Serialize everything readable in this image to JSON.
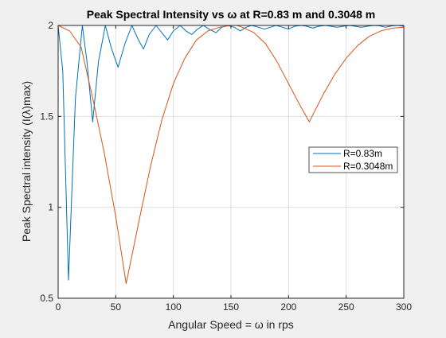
{
  "chart_data": {
    "type": "line",
    "title": "Peak Spectral Intensity vs ω at R=0.83 m and 0.3048 m",
    "xlabel": "Angular Speed = ω in rps",
    "ylabel": "Peak Spectral intensity (I(λ)max)",
    "xlim": [
      0,
      300
    ],
    "ylim": [
      0.5,
      2
    ],
    "xticks": [
      "0",
      "50",
      "100",
      "150",
      "200",
      "250",
      "300"
    ],
    "yticks": [
      "0.5",
      "1",
      "1.5",
      "2"
    ],
    "grid": true,
    "legend_position": "right",
    "series": [
      {
        "name": "R=0.83m",
        "color": "#0072bd",
        "x": [
          0,
          4,
          9,
          15,
          21,
          25,
          30,
          35,
          41,
          46,
          52,
          58,
          64,
          69,
          74,
          79,
          85,
          90,
          95,
          100,
          106,
          111,
          116,
          121,
          126,
          131,
          137,
          142,
          147,
          153,
          158,
          163,
          168,
          174,
          179,
          184,
          189,
          195,
          200,
          205,
          211,
          216,
          221,
          226,
          232,
          237,
          242,
          247,
          253,
          258,
          263,
          268,
          274,
          279,
          284,
          290,
          295,
          300
        ],
        "y": [
          2.0,
          1.75,
          0.6,
          1.6,
          2.0,
          1.8,
          1.47,
          1.8,
          2.0,
          1.88,
          1.77,
          1.9,
          2.0,
          1.93,
          1.87,
          1.95,
          2.0,
          1.96,
          1.92,
          1.97,
          2.0,
          1.97,
          1.95,
          1.98,
          2.0,
          1.98,
          1.96,
          1.99,
          2.0,
          1.99,
          1.97,
          1.99,
          2.0,
          1.99,
          1.98,
          1.99,
          2.0,
          1.99,
          1.98,
          1.995,
          2.0,
          1.995,
          1.985,
          1.995,
          2.0,
          1.995,
          1.99,
          1.995,
          2.0,
          1.995,
          1.99,
          1.995,
          2.0,
          1.998,
          1.99,
          1.998,
          2.0,
          1.995
        ]
      },
      {
        "name": "R=0.3048m",
        "color": "#d95319",
        "x": [
          0,
          10,
          20,
          30,
          40,
          50,
          59,
          70,
          80,
          90,
          100,
          110,
          120,
          130,
          140,
          150,
          155,
          160,
          170,
          180,
          190,
          200,
          210,
          218,
          230,
          240,
          250,
          260,
          270,
          280,
          290,
          300
        ],
        "y": [
          2.0,
          1.97,
          1.88,
          1.6,
          1.3,
          0.95,
          0.58,
          0.92,
          1.22,
          1.48,
          1.68,
          1.82,
          1.92,
          1.97,
          1.99,
          2.0,
          2.0,
          1.99,
          1.96,
          1.9,
          1.8,
          1.68,
          1.56,
          1.47,
          1.62,
          1.73,
          1.82,
          1.89,
          1.94,
          1.97,
          1.985,
          1.99
        ]
      }
    ]
  }
}
